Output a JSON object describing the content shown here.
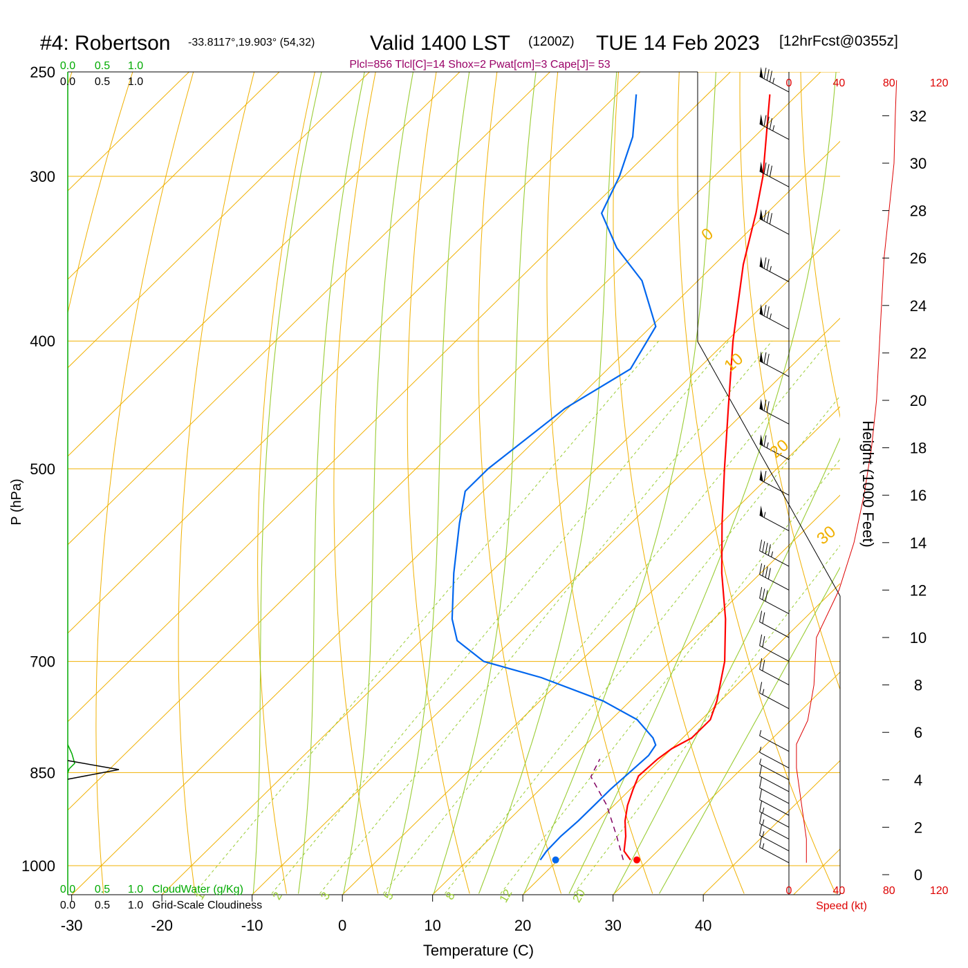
{
  "header": {
    "station": "#4: Robertson",
    "coords": "-33.8117°,19.903° (54,32)",
    "valid": "Valid 1400 LST",
    "utc": "(1200Z)",
    "date": "TUE 14 Feb 2023",
    "forecast": "[12hrFcst@0355z]",
    "params": "Plcl=856 Tlcl[C]=14 Shox=2 Pwat[cm]=3 Cape[J]= 53"
  },
  "colors": {
    "temperature": "#ff0000",
    "dewpoint": "#0066ee",
    "isotherm": "#f0b000",
    "dry_adiabat": "#f0b000",
    "moist_adiabat": "#99cc33",
    "mixing_ratio": "#99cc33",
    "cloud": "#00aa00",
    "parcel": "#800060",
    "params": "#990066",
    "speed": "#dd0000"
  },
  "chart_data": {
    "type": "line",
    "subtype": "skew-T log-P sounding",
    "xlabel": "Temperature (C)",
    "ylabel": "P (hPa)",
    "y2label": "Height (1000 Feet)",
    "x_ticks": [
      "-30",
      "-20",
      "-10",
      "0",
      "10",
      "20",
      "30",
      "40"
    ],
    "y_ticks": [
      "250",
      "300",
      "400",
      "500",
      "700",
      "850",
      "1000"
    ],
    "height_ticks": [
      "0",
      "2",
      "4",
      "6",
      "8",
      "10",
      "12",
      "14",
      "16",
      "18",
      "20",
      "22",
      "24",
      "26",
      "28",
      "30",
      "32"
    ],
    "isotherm_labels": [
      "10",
      "0",
      "-10",
      "-20",
      "-30"
    ],
    "dry_adiabat_labels": [
      "0",
      "10",
      "20",
      "30"
    ],
    "mixing_ratio_labels": [
      "1",
      "2",
      "3",
      "5",
      "8",
      "12",
      "20"
    ],
    "y_scale": "log",
    "series": [
      {
        "name": "Temperature",
        "points": [
          {
            "p": 990,
            "t": 28.0
          },
          {
            "p": 975,
            "t": 26.3
          },
          {
            "p": 950,
            "t": 24.8
          },
          {
            "p": 925,
            "t": 23.0
          },
          {
            "p": 900,
            "t": 21.5
          },
          {
            "p": 875,
            "t": 20.3
          },
          {
            "p": 855,
            "t": 19.4
          },
          {
            "p": 830,
            "t": 19.6
          },
          {
            "p": 815,
            "t": 20.0
          },
          {
            "p": 800,
            "t": 21.0
          },
          {
            "p": 775,
            "t": 21.0
          },
          {
            "p": 750,
            "t": 19.6
          },
          {
            "p": 700,
            "t": 16.0
          },
          {
            "p": 650,
            "t": 11.3
          },
          {
            "p": 600,
            "t": 5.7
          },
          {
            "p": 550,
            "t": 0.1
          },
          {
            "p": 500,
            "t": -5.8
          },
          {
            "p": 450,
            "t": -12.2
          },
          {
            "p": 400,
            "t": -19.3
          },
          {
            "p": 350,
            "t": -26.8
          },
          {
            "p": 320,
            "t": -31.2
          },
          {
            "p": 300,
            "t": -34.6
          },
          {
            "p": 260,
            "t": -43.1
          }
        ]
      },
      {
        "name": "Dewpoint",
        "points": [
          {
            "p": 990,
            "t": 18.0
          },
          {
            "p": 975,
            "t": 17.7
          },
          {
            "p": 950,
            "t": 17.6
          },
          {
            "p": 925,
            "t": 17.8
          },
          {
            "p": 900,
            "t": 17.8
          },
          {
            "p": 875,
            "t": 17.8
          },
          {
            "p": 850,
            "t": 18.0
          },
          {
            "p": 825,
            "t": 18.2
          },
          {
            "p": 810,
            "t": 17.8
          },
          {
            "p": 800,
            "t": 16.7
          },
          {
            "p": 775,
            "t": 12.9
          },
          {
            "p": 750,
            "t": 7.0
          },
          {
            "p": 720,
            "t": -2.5
          },
          {
            "p": 700,
            "t": -10.7
          },
          {
            "p": 675,
            "t": -16.0
          },
          {
            "p": 650,
            "t": -19.0
          },
          {
            "p": 600,
            "t": -24.0
          },
          {
            "p": 550,
            "t": -29.0
          },
          {
            "p": 520,
            "t": -32.0
          },
          {
            "p": 500,
            "t": -32.0
          },
          {
            "p": 450,
            "t": -30.3
          },
          {
            "p": 420,
            "t": -27.5
          },
          {
            "p": 390,
            "t": -29.5
          },
          {
            "p": 360,
            "t": -36.2
          },
          {
            "p": 340,
            "t": -42.7
          },
          {
            "p": 320,
            "t": -48.3
          },
          {
            "p": 300,
            "t": -50.5
          },
          {
            "p": 280,
            "t": -53.5
          },
          {
            "p": 260,
            "t": -57.9
          }
        ]
      },
      {
        "name": "Parcel",
        "style": "dashed",
        "points": [
          {
            "p": 990,
            "t": 27.2
          },
          {
            "p": 950,
            "t": 23.8
          },
          {
            "p": 900,
            "t": 19.2
          },
          {
            "p": 856,
            "t": 14.2
          },
          {
            "p": 830,
            "t": 13.2
          }
        ]
      }
    ],
    "surface_temperature": 28.7,
    "surface_dewpoint": 19.7,
    "wind_speed_profile": [
      {
        "h": 0.5,
        "s": 14
      },
      {
        "h": 1.5,
        "s": 14
      },
      {
        "h": 3.0,
        "s": 10
      },
      {
        "h": 4.5,
        "s": 6
      },
      {
        "h": 5.5,
        "s": 6
      },
      {
        "h": 6.5,
        "s": 15
      },
      {
        "h": 8.0,
        "s": 20
      },
      {
        "h": 10.0,
        "s": 22
      },
      {
        "h": 12.0,
        "s": 40
      },
      {
        "h": 14.0,
        "s": 52
      },
      {
        "h": 16.0,
        "s": 60
      },
      {
        "h": 18.0,
        "s": 66
      },
      {
        "h": 20.0,
        "s": 70
      },
      {
        "h": 22.0,
        "s": 72
      },
      {
        "h": 24.0,
        "s": 74
      },
      {
        "h": 26.0,
        "s": 76
      },
      {
        "h": 28.0,
        "s": 80
      },
      {
        "h": 30.0,
        "s": 84
      },
      {
        "h": 32.0,
        "s": 85
      },
      {
        "h": 33.5,
        "s": 86
      }
    ],
    "speed_ticks": [
      "0",
      "40",
      "80",
      "120"
    ],
    "speed_label": "Speed (kt)",
    "cloud_ticks": [
      "0.0",
      "0.5",
      "1.0"
    ],
    "cloud_water_label": "CloudWater (g/Kg)",
    "cloudiness_label": "Grid-Scale Cloudiness"
  }
}
